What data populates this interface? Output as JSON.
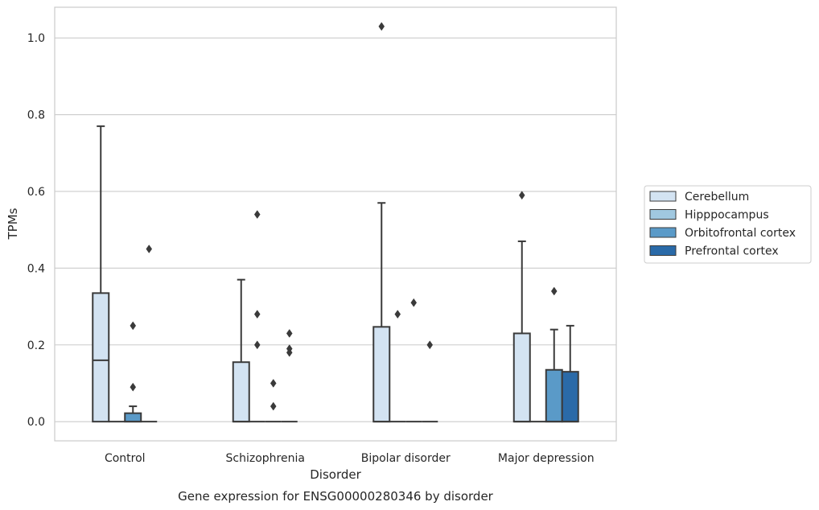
{
  "chart_data": {
    "type": "box",
    "title": "",
    "caption": "Gene expression for ENSG00000280346 by disorder",
    "xlabel": "Disorder",
    "ylabel": "TPMs",
    "ylim": [
      -0.05,
      1.08
    ],
    "yticks": [
      0.0,
      0.2,
      0.4,
      0.6,
      0.8,
      1.0
    ],
    "yticklabels": [
      "0.0",
      "0.2",
      "0.4",
      "0.6",
      "0.8",
      "1.0"
    ],
    "grid": "horizontal",
    "legend_position": "right",
    "categories": [
      "Control",
      "Schizophrenia",
      "Bipolar disorder",
      "Major depression"
    ],
    "series": [
      {
        "name": "Cerebellum",
        "color": "#d3e3f2",
        "boxes": [
          {
            "q1": 0.0,
            "median": 0.16,
            "q3": 0.335,
            "whisker_low": 0.0,
            "whisker_high": 0.77,
            "outliers": []
          },
          {
            "q1": 0.0,
            "median": 0.0,
            "q3": 0.155,
            "whisker_low": 0.0,
            "whisker_high": 0.37,
            "outliers": []
          },
          {
            "q1": 0.0,
            "median": 0.0,
            "q3": 0.247,
            "whisker_low": 0.0,
            "whisker_high": 0.57,
            "outliers": [
              1.03
            ]
          },
          {
            "q1": 0.0,
            "median": 0.0,
            "q3": 0.23,
            "whisker_low": 0.0,
            "whisker_high": 0.47,
            "outliers": [
              0.59
            ]
          }
        ]
      },
      {
        "name": "Hipppocampus",
        "color": "#a0c8e0",
        "boxes": [
          {
            "q1": 0.0,
            "median": 0.0,
            "q3": 0.0,
            "whisker_low": 0.0,
            "whisker_high": 0.0,
            "outliers": []
          },
          {
            "q1": 0.0,
            "median": 0.0,
            "q3": 0.0,
            "whisker_low": 0.0,
            "whisker_high": 0.0,
            "outliers": [
              0.54,
              0.28,
              0.2
            ]
          },
          {
            "q1": 0.0,
            "median": 0.0,
            "q3": 0.0,
            "whisker_low": 0.0,
            "whisker_high": 0.0,
            "outliers": [
              0.28
            ]
          },
          {
            "q1": 0.0,
            "median": 0.0,
            "q3": 0.0,
            "whisker_low": 0.0,
            "whisker_high": 0.0,
            "outliers": []
          }
        ]
      },
      {
        "name": "Orbitofrontal cortex",
        "color": "#5a9ac8",
        "boxes": [
          {
            "q1": 0.0,
            "median": 0.0,
            "q3": 0.022,
            "whisker_low": 0.0,
            "whisker_high": 0.04,
            "outliers": [
              0.25,
              0.09
            ]
          },
          {
            "q1": 0.0,
            "median": 0.0,
            "q3": 0.0,
            "whisker_low": 0.0,
            "whisker_high": 0.0,
            "outliers": [
              0.1,
              0.04
            ]
          },
          {
            "q1": 0.0,
            "median": 0.0,
            "q3": 0.0,
            "whisker_low": 0.0,
            "whisker_high": 0.0,
            "outliers": [
              0.31
            ]
          },
          {
            "q1": 0.0,
            "median": 0.0,
            "q3": 0.135,
            "whisker_low": 0.0,
            "whisker_high": 0.24,
            "outliers": [
              0.34
            ]
          }
        ]
      },
      {
        "name": "Prefrontal cortex",
        "color": "#2a6aa8",
        "boxes": [
          {
            "q1": 0.0,
            "median": 0.0,
            "q3": 0.0,
            "whisker_low": 0.0,
            "whisker_high": 0.0,
            "outliers": [
              0.45
            ]
          },
          {
            "q1": 0.0,
            "median": 0.0,
            "q3": 0.0,
            "whisker_low": 0.0,
            "whisker_high": 0.0,
            "outliers": [
              0.23,
              0.19,
              0.18
            ]
          },
          {
            "q1": 0.0,
            "median": 0.0,
            "q3": 0.0,
            "whisker_low": 0.0,
            "whisker_high": 0.0,
            "outliers": [
              0.2
            ]
          },
          {
            "q1": 0.0,
            "median": 0.0,
            "q3": 0.13,
            "whisker_low": 0.0,
            "whisker_high": 0.25,
            "outliers": []
          }
        ]
      }
    ]
  }
}
